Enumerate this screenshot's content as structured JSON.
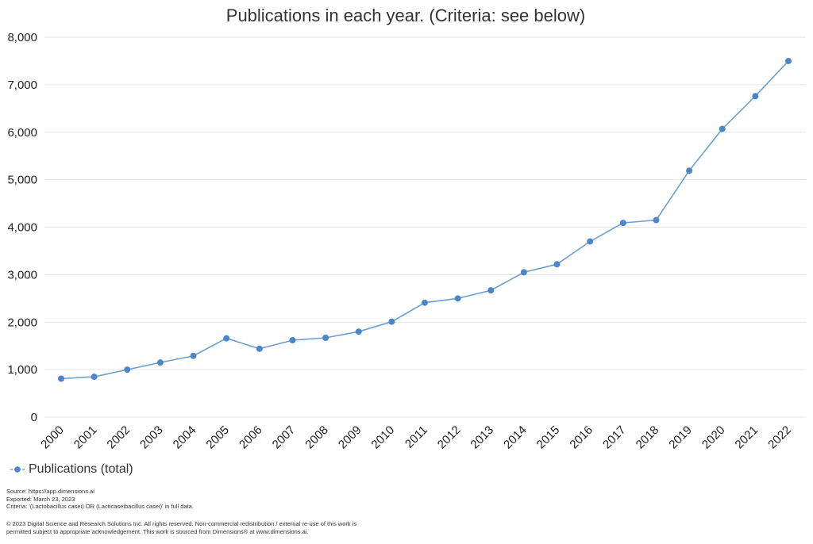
{
  "chart_data": {
    "type": "line",
    "title": "Publications in each year. (Criteria: see below)",
    "xlabel": "",
    "ylabel": "",
    "categories": [
      "2000",
      "2001",
      "2002",
      "2003",
      "2004",
      "2005",
      "2006",
      "2007",
      "2008",
      "2009",
      "2010",
      "2011",
      "2012",
      "2013",
      "2014",
      "2015",
      "2016",
      "2017",
      "2018",
      "2019",
      "2020",
      "2021",
      "2022"
    ],
    "series": [
      {
        "name": "Publications (total)",
        "color": "#4a86c8",
        "values": [
          810,
          850,
          1000,
          1150,
          1290,
          1660,
          1440,
          1620,
          1670,
          1800,
          2010,
          2410,
          2500,
          2670,
          3050,
          3220,
          3700,
          4090,
          4150,
          5190,
          6070,
          6760,
          7500
        ]
      }
    ],
    "ylim": [
      0,
      8000
    ],
    "yticks": [
      0,
      1000,
      2000,
      3000,
      4000,
      5000,
      6000,
      7000,
      8000
    ],
    "ytick_labels": [
      "0",
      "1,000",
      "2,000",
      "3,000",
      "4,000",
      "5,000",
      "6,000",
      "7,000",
      "8,000"
    ],
    "grid": true,
    "legend_position": "bottom-left"
  },
  "legend": {
    "label": "Publications (total)"
  },
  "footer": {
    "source": "Source: https://app.dimensions.ai",
    "exported": "Exported: March 23, 2023",
    "criteria": "Criteria: '(Lactobacillus casei) OR (Lacticaseibacillus casei)' in full data.",
    "copyright_line1": "© 2023 Digital Science and Research Solutions Inc. All rights reserved. Non-commercial redistribution / external re-use of this work is",
    "copyright_line2": "permitted subject to appropriate acknowledgement. This work is sourced from Dimensions® at www.dimensions.ai."
  }
}
